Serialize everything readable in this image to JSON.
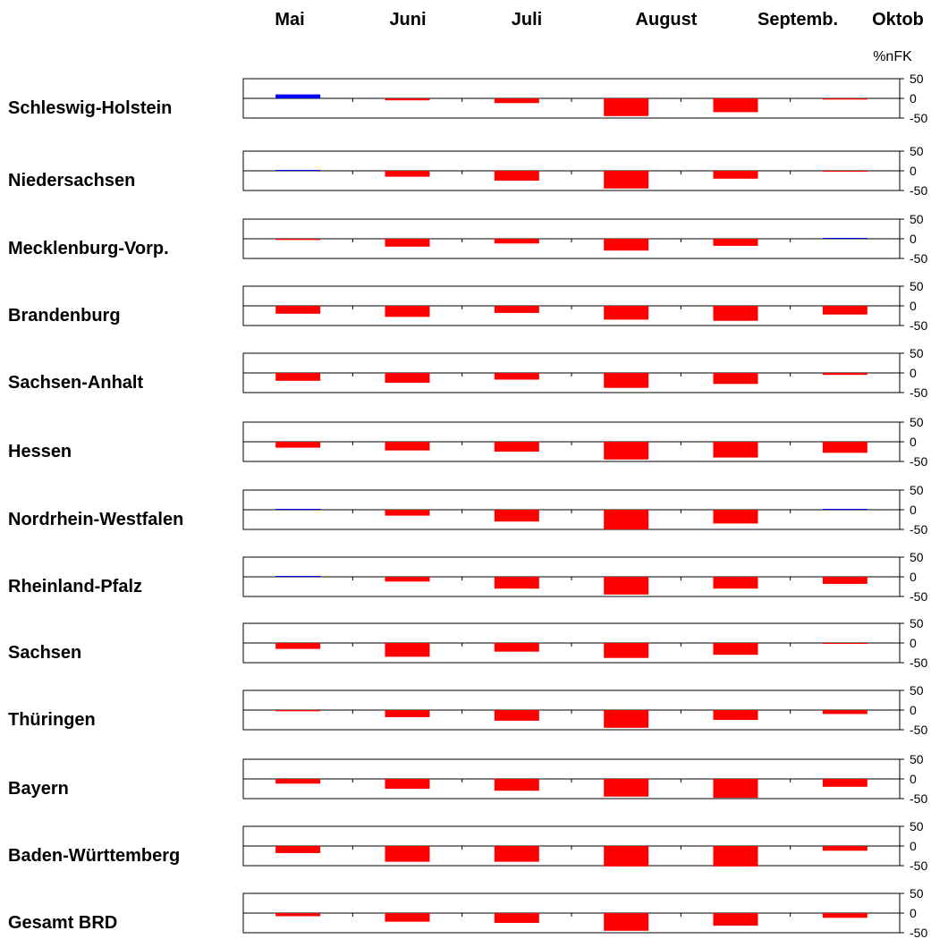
{
  "chart_data": {
    "type": "bar",
    "categories": [
      "Mai",
      "Juni",
      "Juli",
      "August",
      "Septemb.",
      "Oktob"
    ],
    "unit_label": "%nFK",
    "ylim": [
      -50,
      50
    ],
    "yticks": [
      "50",
      "0",
      "-50"
    ],
    "positive_color": "#0000ff",
    "negative_color": "#ff0000",
    "series": [
      {
        "name": "Schleswig-Holstein",
        "values": [
          10,
          -5,
          -12,
          -45,
          -35,
          -3
        ]
      },
      {
        "name": "Niedersachsen",
        "values": [
          0,
          -15,
          -25,
          -45,
          -20,
          -1
        ]
      },
      {
        "name": "Mecklenburg-Vorp.",
        "values": [
          -3,
          -20,
          -12,
          -30,
          -18,
          2
        ]
      },
      {
        "name": "Brandenburg",
        "values": [
          -20,
          -28,
          -18,
          -35,
          -38,
          -22
        ]
      },
      {
        "name": "Sachsen-Anhalt",
        "values": [
          -20,
          -25,
          -17,
          -38,
          -28,
          -5
        ]
      },
      {
        "name": "Hessen",
        "values": [
          -15,
          -22,
          -25,
          -45,
          -40,
          -28
        ]
      },
      {
        "name": "Nordrhein-Westfalen",
        "values": [
          2,
          -15,
          -30,
          -50,
          -35,
          0
        ]
      },
      {
        "name": "Rheinland-Pfalz",
        "values": [
          0,
          -12,
          -30,
          -45,
          -30,
          -18
        ]
      },
      {
        "name": "Sachsen",
        "values": [
          -15,
          -35,
          -22,
          -38,
          -30,
          -2
        ]
      },
      {
        "name": "Thüringen",
        "values": [
          -3,
          -18,
          -27,
          -45,
          -25,
          -10
        ]
      },
      {
        "name": "Bayern",
        "values": [
          -12,
          -25,
          -30,
          -45,
          -48,
          -20
        ]
      },
      {
        "name": "Baden-Württemberg",
        "values": [
          -18,
          -40,
          -40,
          -52,
          -52,
          -12
        ]
      },
      {
        "name": "Gesamt BRD",
        "values": [
          -8,
          -22,
          -25,
          -45,
          -32,
          -12
        ]
      }
    ]
  }
}
